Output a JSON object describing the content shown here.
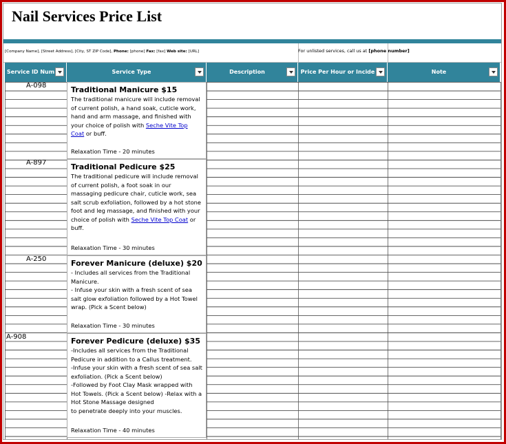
{
  "header": {
    "title": "Nail Services Price List",
    "contact": [
      "[Company Name], [Street Address], [City, ST ZIP Code],",
      "Phone:",
      "[phone]",
      "Fax:",
      "[fax]",
      "Web site:",
      "[URL]"
    ],
    "unlisted": [
      "For unlisted services, call us at",
      "[phone number]"
    ]
  },
  "table": {
    "columns": [
      "Service ID Num",
      "Service Type",
      "Description",
      "Price Per Hour or Incide",
      "Note"
    ],
    "services": [
      {
        "id": "A-098",
        "name": "Traditional Manicure $15",
        "description": [
          "The traditional manicure will include removal of current polish, a hand soak, cuticle work, hand and arm massage, and finished with your choice of polish with"
        ],
        "link": "Seche Vite Top Coat",
        "after_link": "or buff.",
        "relaxation": "Relaxation Time - 20 minutes"
      },
      {
        "id": "A-897",
        "name": "Traditional Pedicure $25",
        "description": [
          "The traditional pedicure will include removal of current polish, a foot soak in our massaging pedicure chair, cuticle work, sea salt scrub exfoliation, followed by a hot stone foot and leg massage, and finished with your choice of polish with"
        ],
        "link": "Seche Vite Top Coat",
        "after_link": "or buff.",
        "relaxation": "Relaxation Time - 30 minutes"
      },
      {
        "id": "A-250",
        "name": "Forever Manicure (deluxe) $20",
        "description": [
          "- Includes all services from the Traditional Manicure.",
          "- Infuse your skin with a fresh scent of sea salt glow exfoliation followed by a Hot Towel wrap. (Pick a Scent below)"
        ],
        "relaxation": "Relaxation Time - 30 minutes"
      },
      {
        "id": "A-908",
        "name": "Forever Pedicure (deluxe) $35",
        "description": [
          "-Includes all services from the Traditional Pedicure in addition to a Callus treatment.",
          "-Infuse your skin with a fresh scent of sea salt exfoliation. (Pick a Scent below)",
          "-Followed by Foot Clay Mask wrapped with Hot Towels. (Pick a Scent below) -Relax with a Hot Stone Massage designed",
          "to penetrate deeply into your muscles."
        ],
        "relaxation": "Relaxation Time - 40 minutes"
      }
    ]
  }
}
